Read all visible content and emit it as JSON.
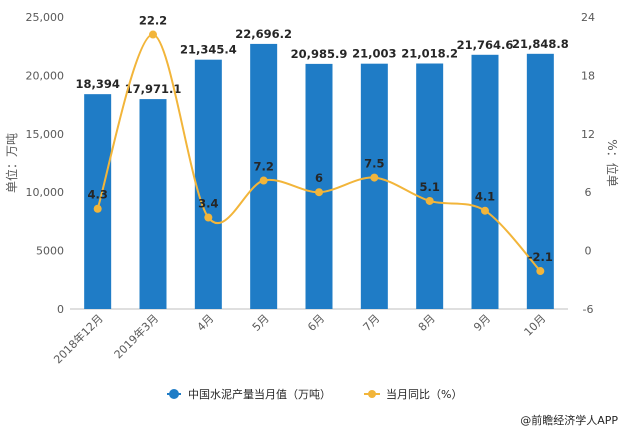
{
  "chart_data": {
    "type": "bar",
    "categories": [
      "2018年12月",
      "2019年3月",
      "4月",
      "5月",
      "6月",
      "7月",
      "8月",
      "9月",
      "10月"
    ],
    "series": [
      {
        "name": "中国水泥产量当月值（万吨）",
        "type": "bar",
        "axis": "left",
        "values": [
          18394,
          17971.1,
          21345.4,
          22696.2,
          20985.9,
          21003,
          21018.2,
          21764.6,
          21848.8
        ],
        "labels": [
          "18,394",
          "17,971.1",
          "21,345.4",
          "22,696.2",
          "20,985.9",
          "21,003",
          "21,018.2",
          "21,764.6",
          "21,848.8"
        ],
        "color": "#1f7cc6"
      },
      {
        "name": "当月同比（%）",
        "type": "line",
        "axis": "right",
        "values": [
          4.3,
          22.2,
          3.4,
          7.2,
          6,
          7.5,
          5.1,
          4.1,
          -2.1
        ],
        "labels": [
          "4.3",
          "22.2",
          "3.4",
          "7.2",
          "6",
          "7.5",
          "5.1",
          "4.1",
          "-2.1"
        ],
        "color": "#f2b53a"
      }
    ],
    "ylabel": "单位：万吨",
    "y2label": "%：位单",
    "ylim": [
      0,
      25000
    ],
    "y2lim": [
      -6,
      24
    ],
    "yticks": [
      0,
      5000,
      10000,
      15000,
      20000,
      25000
    ],
    "ytick_labels": [
      "0",
      "5000",
      "10,000",
      "15,000",
      "20,000",
      "25,000"
    ],
    "y2ticks": [
      -6,
      0,
      6,
      12,
      18,
      24
    ],
    "y2tick_labels": [
      "-6",
      "0",
      "6",
      "12",
      "18",
      "24"
    ],
    "grid": false,
    "legend": "bottom"
  },
  "source": "@前瞻经济学人APP"
}
